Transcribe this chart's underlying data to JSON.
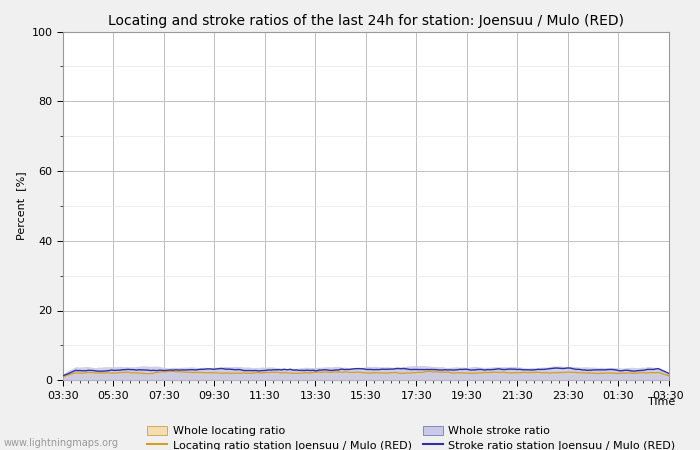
{
  "title": "Locating and stroke ratios of the last 24h for station: Joensuu / Mulo (RED)",
  "ylabel": "Percent  [%]",
  "xlabel": "Time",
  "watermark": "www.lightningmaps.org",
  "ylim": [
    0,
    100
  ],
  "yticks": [
    0,
    20,
    40,
    60,
    80,
    100
  ],
  "yticks_minor": [
    10,
    30,
    50,
    70,
    90
  ],
  "x_tick_labels": [
    "03:30",
    "05:30",
    "07:30",
    "09:30",
    "11:30",
    "13:30",
    "15:30",
    "17:30",
    "19:30",
    "21:30",
    "23:30",
    "01:30",
    "03:30"
  ],
  "n_points": 289,
  "whole_locating_fill_color": "#f5ddb0",
  "whole_locating_line_color": "#e8b84b",
  "whole_stroke_fill_color": "#c8c8e8",
  "whole_stroke_line_color": "#8080c8",
  "station_locating_line_color": "#d4a020",
  "station_stroke_line_color": "#3030a0",
  "background_color": "#f0f0f0",
  "plot_bg_color": "#ffffff",
  "grid_color": "#c0c0c0",
  "title_fontsize": 10,
  "axis_fontsize": 8,
  "tick_fontsize": 8,
  "legend_fontsize": 8
}
